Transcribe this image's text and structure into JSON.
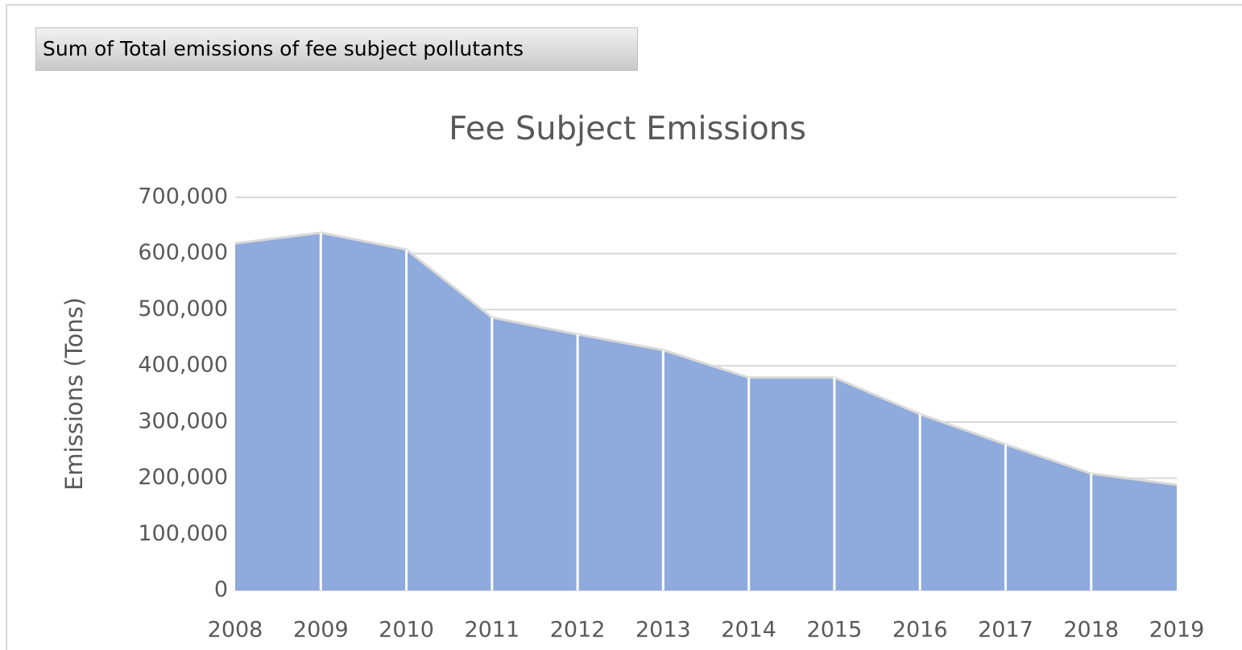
{
  "field_button": "Sum of Total emissions of fee subject pollutants",
  "chart_data": {
    "type": "area",
    "title": "Fee Subject Emissions",
    "y_label": "Emissions (Tons)",
    "categories": [
      "2008",
      "2009",
      "2010",
      "2011",
      "2012",
      "2013",
      "2014",
      "2015",
      "2016",
      "2017",
      "2018",
      "2019"
    ],
    "values": [
      618000,
      637000,
      607000,
      486000,
      456000,
      428000,
      379000,
      379000,
      314000,
      260000,
      208000,
      188000
    ],
    "color": "#8faadc",
    "ylim": [
      0,
      700000
    ],
    "yticks": [
      0,
      {
        "value": 100000,
        "label": "100,000"
      },
      {
        "value": 200000,
        "label": "200,000"
      },
      {
        "value": 300000,
        "label": "300,000"
      },
      {
        "value": 400000,
        "label": "400,000"
      },
      {
        "value": 500000,
        "label": "500,000"
      },
      {
        "value": 600000,
        "label": "600,000"
      },
      {
        "value": 700000,
        "label": "700,000"
      }
    ],
    "grid": true
  }
}
